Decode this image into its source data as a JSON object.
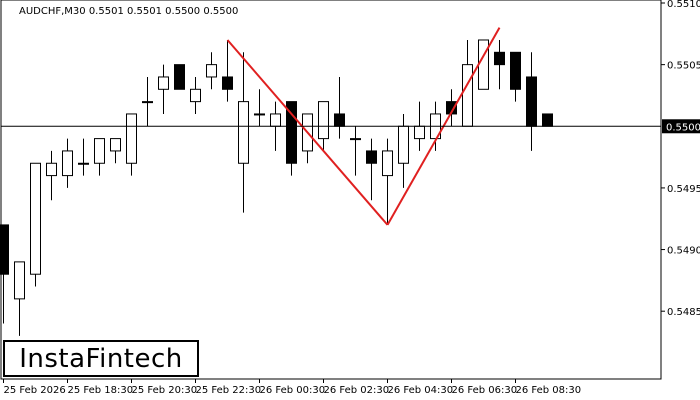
{
  "header": {
    "symbol_info": "AUDCHF,M30  0.5501 0.5501 0.5500 0.5500"
  },
  "logo": {
    "text": "InstaFintech"
  },
  "chart_data": {
    "type": "candlestick",
    "symbol": "AUDCHF",
    "timeframe": "M30",
    "ylim": [
      0.54795,
      0.551
    ],
    "y_ticks": [
      "0.5510",
      "0.5505",
      "0.5500",
      "0.5495",
      "0.5490",
      "0.5485"
    ],
    "current_price": "0.5500",
    "x_ticks": [
      "25 Feb 2026",
      "25 Feb 18:30",
      "25 Feb 20:30",
      "25 Feb 22:30",
      "26 Feb 00:30",
      "26 Feb 02:30",
      "26 Feb 04:30",
      "26 Feb 06:30",
      "26 Feb 08:30"
    ],
    "x_tick_candle_index": [
      0,
      4,
      8,
      12,
      16,
      20,
      24,
      28,
      32
    ],
    "candles": [
      {
        "o": 0.5492,
        "h": 0.5492,
        "l": 0.5484,
        "c": 0.5488
      },
      {
        "o": 0.5486,
        "h": 0.5489,
        "l": 0.5483,
        "c": 0.5489
      },
      {
        "o": 0.5488,
        "h": 0.5497,
        "l": 0.5487,
        "c": 0.5497
      },
      {
        "o": 0.5496,
        "h": 0.5498,
        "l": 0.5494,
        "c": 0.5497
      },
      {
        "o": 0.5496,
        "h": 0.5499,
        "l": 0.5495,
        "c": 0.5498
      },
      {
        "o": 0.5497,
        "h": 0.5499,
        "l": 0.5496,
        "c": 0.5497
      },
      {
        "o": 0.5497,
        "h": 0.5499,
        "l": 0.5496,
        "c": 0.5499
      },
      {
        "o": 0.5498,
        "h": 0.5499,
        "l": 0.5497,
        "c": 0.5499
      },
      {
        "o": 0.5497,
        "h": 0.5501,
        "l": 0.5496,
        "c": 0.5501
      },
      {
        "o": 0.5502,
        "h": 0.5504,
        "l": 0.55,
        "c": 0.5502
      },
      {
        "o": 0.5503,
        "h": 0.5505,
        "l": 0.5501,
        "c": 0.5504
      },
      {
        "o": 0.5505,
        "h": 0.5505,
        "l": 0.5503,
        "c": 0.5503
      },
      {
        "o": 0.5502,
        "h": 0.5504,
        "l": 0.5501,
        "c": 0.5503
      },
      {
        "o": 0.5504,
        "h": 0.5506,
        "l": 0.5503,
        "c": 0.5505
      },
      {
        "o": 0.5504,
        "h": 0.5507,
        "l": 0.5502,
        "c": 0.5503
      },
      {
        "o": 0.5497,
        "h": 0.5506,
        "l": 0.5493,
        "c": 0.5502
      },
      {
        "o": 0.5501,
        "h": 0.5503,
        "l": 0.55,
        "c": 0.5501
      },
      {
        "o": 0.55,
        "h": 0.5502,
        "l": 0.5498,
        "c": 0.5501
      },
      {
        "o": 0.5502,
        "h": 0.5502,
        "l": 0.5496,
        "c": 0.5497
      },
      {
        "o": 0.5498,
        "h": 0.5501,
        "l": 0.5497,
        "c": 0.5501
      },
      {
        "o": 0.5499,
        "h": 0.5502,
        "l": 0.5498,
        "c": 0.5502
      },
      {
        "o": 0.5501,
        "h": 0.5504,
        "l": 0.5499,
        "c": 0.55
      },
      {
        "o": 0.5499,
        "h": 0.55,
        "l": 0.5496,
        "c": 0.5499
      },
      {
        "o": 0.5498,
        "h": 0.5499,
        "l": 0.5494,
        "c": 0.5497
      },
      {
        "o": 0.5496,
        "h": 0.5499,
        "l": 0.5492,
        "c": 0.5498
      },
      {
        "o": 0.5497,
        "h": 0.5501,
        "l": 0.5495,
        "c": 0.55
      },
      {
        "o": 0.5499,
        "h": 0.5502,
        "l": 0.5498,
        "c": 0.55
      },
      {
        "o": 0.5499,
        "h": 0.5502,
        "l": 0.5498,
        "c": 0.5501
      },
      {
        "o": 0.5502,
        "h": 0.5503,
        "l": 0.55,
        "c": 0.5501
      },
      {
        "o": 0.55,
        "h": 0.5507,
        "l": 0.55,
        "c": 0.5505
      },
      {
        "o": 0.5503,
        "h": 0.5507,
        "l": 0.5503,
        "c": 0.5507
      },
      {
        "o": 0.5506,
        "h": 0.5507,
        "l": 0.5503,
        "c": 0.5505
      },
      {
        "o": 0.5506,
        "h": 0.5506,
        "l": 0.5502,
        "c": 0.5503
      },
      {
        "o": 0.5504,
        "h": 0.5506,
        "l": 0.5498,
        "c": 0.55
      },
      {
        "o": 0.5501,
        "h": 0.5501,
        "l": 0.55,
        "c": 0.55
      }
    ],
    "pattern_line": {
      "color": "#e02020",
      "points": [
        {
          "candle": 14,
          "price": 0.5507
        },
        {
          "candle": 24,
          "price": 0.5492
        },
        {
          "candle": 31,
          "price": 0.5508
        }
      ]
    },
    "colors": {
      "bull_fill": "#ffffff",
      "bear_fill": "#000000",
      "outline": "#000000",
      "grid": "#000000",
      "price_label_bg": "#000000",
      "price_label_text": "#ffffff"
    }
  }
}
